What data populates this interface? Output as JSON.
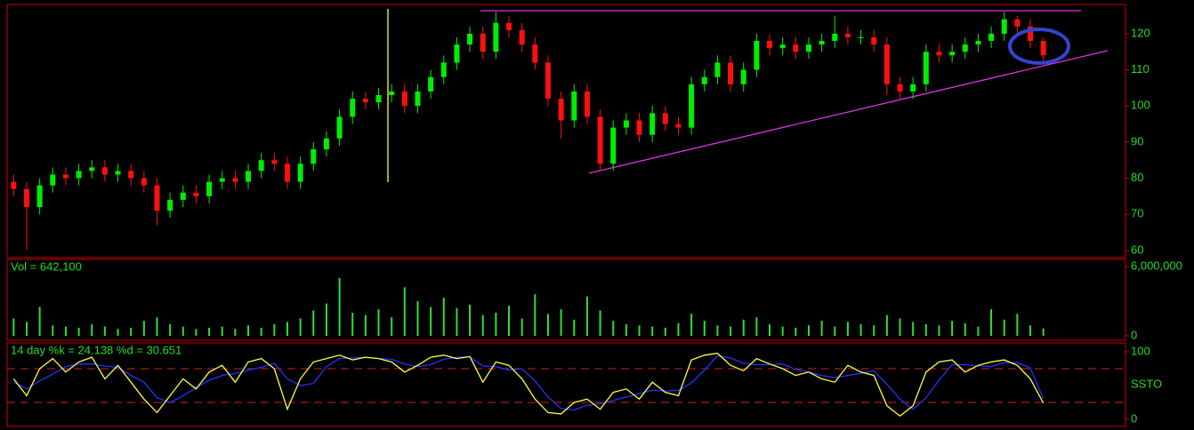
{
  "chart_data": [
    {
      "type": "candlestick",
      "up_color": "#00ee00",
      "down_color": "#ff1010",
      "open": [
        79,
        77,
        72,
        78,
        81,
        80,
        82,
        83,
        81,
        82,
        80,
        78,
        71,
        74,
        76,
        75,
        79,
        80,
        79,
        82,
        85,
        84,
        79,
        84,
        88,
        91,
        97,
        102,
        101,
        103,
        104,
        100,
        104,
        108,
        112,
        117,
        120,
        115,
        123,
        121,
        117,
        112,
        102,
        96,
        104,
        97,
        84,
        94,
        96,
        92,
        98,
        95,
        94,
        106,
        108,
        112,
        106,
        110,
        118,
        116,
        117,
        115,
        117,
        118,
        120,
        119,
        119,
        117,
        106,
        104,
        106,
        115,
        114,
        115,
        117,
        118,
        120,
        124,
        122,
        118
      ],
      "high": [
        81,
        79,
        80,
        83,
        83,
        84,
        85,
        85,
        84,
        84,
        82,
        80,
        76,
        78,
        78,
        81,
        82,
        82,
        84,
        87,
        87,
        86,
        86,
        90,
        93,
        99,
        104,
        104,
        105,
        106,
        106,
        106,
        110,
        114,
        119,
        122,
        122,
        126,
        125,
        123,
        119,
        114,
        104,
        106,
        106,
        99,
        96,
        98,
        98,
        100,
        100,
        97,
        108,
        110,
        114,
        114,
        112,
        120,
        120,
        119,
        119,
        119,
        120,
        125,
        122,
        121,
        121,
        119,
        108,
        108,
        117,
        117,
        117,
        119,
        120,
        122,
        126,
        125,
        124,
        119
      ],
      "low": [
        75,
        60,
        70,
        76,
        78,
        78,
        80,
        79,
        79,
        78,
        76,
        67,
        69,
        72,
        73,
        73,
        77,
        77,
        77,
        80,
        82,
        77,
        77,
        82,
        86,
        89,
        95,
        99,
        99,
        101,
        98,
        98,
        102,
        106,
        110,
        115,
        113,
        113,
        119,
        115,
        110,
        100,
        91,
        94,
        95,
        82,
        82,
        92,
        90,
        90,
        93,
        92,
        92,
        104,
        106,
        104,
        104,
        108,
        114,
        114,
        113,
        113,
        115,
        116,
        117,
        117,
        115,
        103,
        102,
        102,
        104,
        112,
        112,
        113,
        115,
        116,
        118,
        120,
        116,
        112
      ],
      "close": [
        77,
        72,
        78,
        81,
        80,
        82,
        83,
        81,
        82,
        80,
        78,
        71,
        74,
        76,
        75,
        79,
        80,
        79,
        82,
        85,
        84,
        79,
        84,
        88,
        91,
        97,
        102,
        101,
        103,
        104,
        100,
        104,
        108,
        112,
        117,
        120,
        115,
        123,
        121,
        117,
        112,
        102,
        96,
        104,
        97,
        84,
        94,
        96,
        92,
        98,
        95,
        94,
        106,
        108,
        112,
        106,
        110,
        118,
        116,
        117,
        115,
        117,
        118,
        120,
        119,
        119,
        117,
        106,
        104,
        106,
        115,
        114,
        115,
        117,
        118,
        120,
        124,
        122,
        118,
        114
      ],
      "ylim": [
        58,
        128.1
      ],
      "yticks": [
        60,
        70,
        80,
        90,
        100,
        110,
        120
      ]
    },
    {
      "type": "bar",
      "label": "Vol = 642,100",
      "color": "#33dd33",
      "values": [
        1500000,
        1200000,
        2500000,
        900000,
        800000,
        700000,
        1000000,
        800000,
        600000,
        700000,
        1300000,
        1600000,
        1000000,
        800000,
        600000,
        700000,
        800000,
        600000,
        900000,
        700000,
        1000000,
        1200000,
        1500000,
        2200000,
        2800000,
        5000000,
        2000000,
        1800000,
        2300000,
        1600000,
        4200000,
        3000000,
        2500000,
        3300000,
        2400000,
        2700000,
        1800000,
        2000000,
        2600000,
        1500000,
        3600000,
        1900000,
        2300000,
        1400000,
        3400000,
        2200000,
        1300000,
        1000000,
        900000,
        800000,
        700000,
        1100000,
        1900000,
        1300000,
        900000,
        800000,
        1400000,
        1600000,
        1000000,
        800000,
        700000,
        900000,
        1300000,
        800000,
        1200000,
        1000000,
        900000,
        1800000,
        1500000,
        1200000,
        1000000,
        900000,
        1300000,
        1100000,
        800000,
        2300000,
        1400000,
        1900000,
        900000,
        642100
      ],
      "ylim": [
        -385000,
        6615000
      ],
      "yticks": [
        0,
        {
          "value": 6000000,
          "label": "6,000,000"
        }
      ]
    },
    {
      "type": "line",
      "label": "14 day   %k = 24.138   %d = 30.651",
      "axis_label": "SSTO",
      "series": [
        {
          "color": "#ffff40",
          "values": [
            60,
            35,
            75,
            90,
            70,
            85,
            92,
            60,
            80,
            55,
            30,
            10,
            35,
            60,
            45,
            70,
            80,
            55,
            85,
            90,
            75,
            15,
            60,
            85,
            90,
            95,
            88,
            92,
            90,
            85,
            70,
            80,
            92,
            95,
            90,
            93,
            55,
            85,
            80,
            60,
            30,
            10,
            8,
            25,
            30,
            15,
            40,
            45,
            30,
            55,
            40,
            35,
            88,
            95,
            98,
            80,
            72,
            90,
            82,
            75,
            65,
            70,
            60,
            55,
            80,
            70,
            65,
            20,
            5,
            20,
            70,
            85,
            88,
            70,
            80,
            85,
            88,
            80,
            60,
            24.138
          ]
        },
        {
          "color": "#2233ff",
          "values": [
            55,
            45,
            57,
            67,
            78,
            82,
            82,
            79,
            77,
            65,
            55,
            32,
            25,
            35,
            47,
            58,
            65,
            68,
            73,
            77,
            83,
            60,
            50,
            53,
            78,
            90,
            91,
            92,
            90,
            89,
            82,
            78,
            81,
            89,
            92,
            93,
            79,
            78,
            73,
            75,
            57,
            33,
            16,
            14,
            21,
            23,
            28,
            33,
            38,
            43,
            42,
            43,
            54,
            73,
            94,
            91,
            83,
            81,
            81,
            82,
            74,
            70,
            65,
            62,
            65,
            68,
            72,
            52,
            30,
            15,
            32,
            58,
            81,
            81,
            79,
            78,
            84,
            84,
            76,
            30.651
          ]
        }
      ],
      "levels": [
        75,
        25
      ],
      "level_color": "#cc2222",
      "ylim": [
        -10.5,
        113.2
      ],
      "yticks": [
        0,
        100
      ]
    }
  ]
}
